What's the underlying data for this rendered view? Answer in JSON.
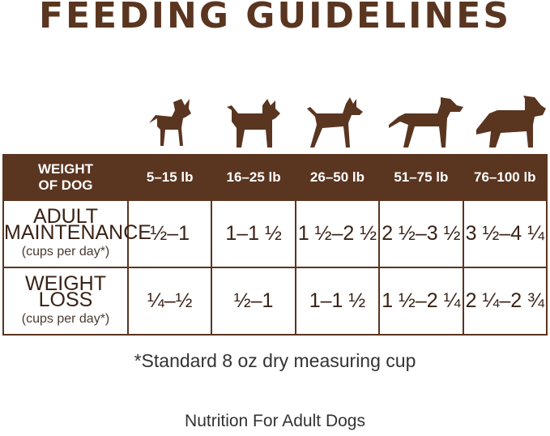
{
  "title": "FEEDING GUIDELINES",
  "colors": {
    "brown": "#5a3520"
  },
  "icons": [
    "small-dog-icon",
    "terrier-dog-icon",
    "medium-dog-icon",
    "large-dog-icon",
    "giant-dog-icon"
  ],
  "table": {
    "header": {
      "label": [
        "WEIGHT",
        "OF DOG"
      ],
      "weights": [
        "5–15 lb",
        "16–25 lb",
        "26–50 lb",
        "51–75 lb",
        "76–100 lb"
      ]
    },
    "rows": [
      {
        "label": [
          "ADULT",
          "MAINTENANCE",
          "(cups per day*)"
        ],
        "values": [
          "½–1",
          "1–1 ½",
          "1 ½–2 ½",
          "2 ½–3 ½",
          "3 ½–4 ¼"
        ]
      },
      {
        "label": [
          "WEIGHT",
          "LOSS",
          "(cups per day*)"
        ],
        "values": [
          "¼–½",
          "½–1",
          "1–1 ½",
          "1 ½–2 ¼",
          "2 ¼–2 ¾"
        ]
      }
    ]
  },
  "footnote": "*Standard 8 oz dry measuring cup",
  "subtitle": "Nutrition For Adult Dogs"
}
